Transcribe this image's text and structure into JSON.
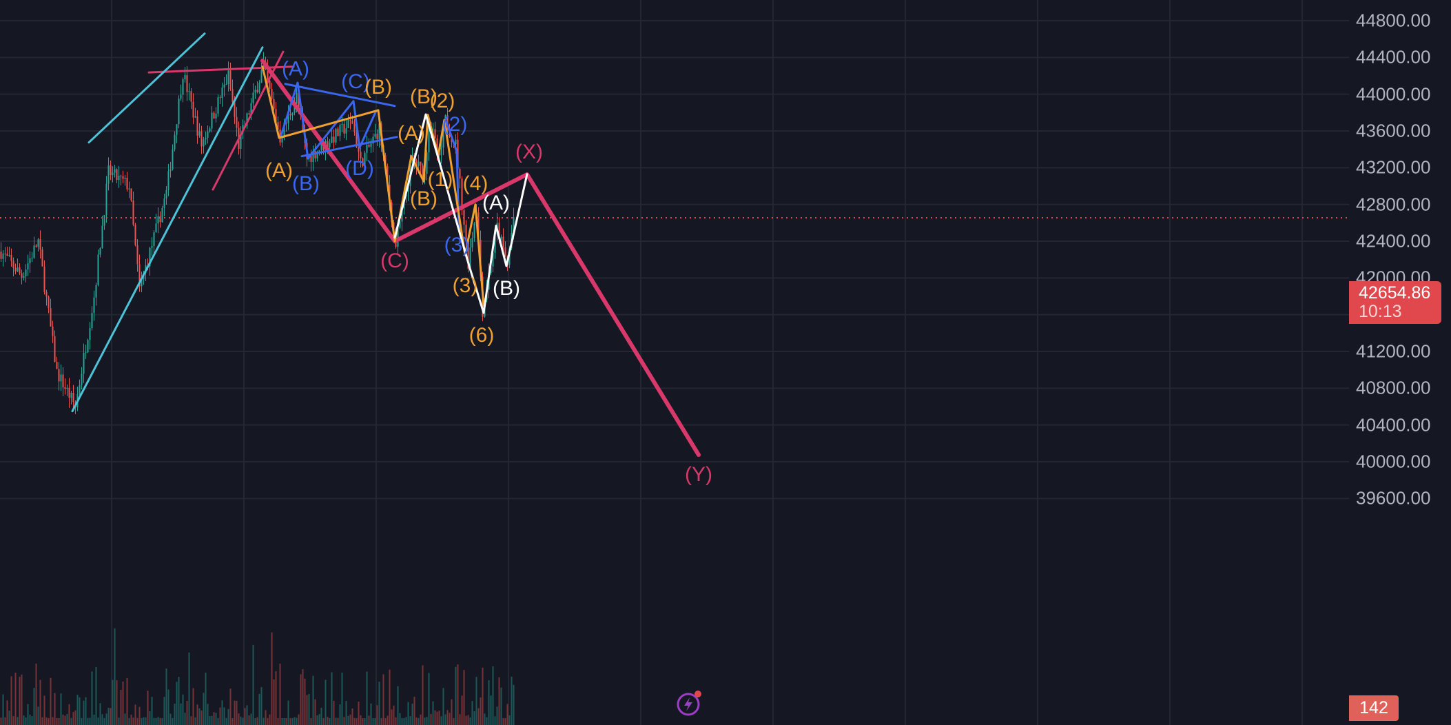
{
  "chart_data": {
    "type": "candlestick",
    "ylim": [
      39450,
      45050
    ],
    "y_ticks": [
      "44800.00",
      "44400.00",
      "44000.00",
      "43600.00",
      "43200.00",
      "42800.00",
      "42400.00",
      "42000.00",
      "41600.00",
      "41200.00",
      "40800.00",
      "40400.00",
      "40000.00",
      "39600.00"
    ],
    "grid": true,
    "current_price": "42654.86",
    "countdown": "10:13",
    "volume_label": "142",
    "colors": {
      "background": "#151823",
      "up": "#26a69a",
      "down": "#ef5350",
      "pink": "#d8386a",
      "cyan": "#4ec3d8",
      "blue": "#3a66f0",
      "orange": "#f0a030",
      "white": "#ffffff",
      "price_line": "#e0484e"
    },
    "price_path": [
      [
        0,
        42287
      ],
      [
        10,
        42025
      ],
      [
        18,
        42400
      ],
      [
        27,
        40975
      ],
      [
        36,
        40600
      ],
      [
        45,
        41800
      ],
      [
        52,
        43150
      ],
      [
        62,
        43000
      ],
      [
        67,
        41875
      ],
      [
        80,
        42925
      ],
      [
        88,
        44237
      ],
      [
        97,
        43450
      ],
      [
        110,
        44200
      ],
      [
        115,
        43450
      ],
      [
        127,
        44312
      ],
      [
        135,
        43525
      ],
      [
        143,
        43975
      ],
      [
        148,
        43300
      ],
      [
        170,
        43700
      ],
      [
        174,
        43250
      ],
      [
        183,
        43625
      ],
      [
        191,
        42362
      ],
      [
        199,
        43300
      ],
      [
        205,
        43112
      ],
      [
        207,
        43750
      ],
      [
        212,
        43262
      ],
      [
        215,
        43712
      ],
      [
        220,
        43450
      ],
      [
        226,
        42175
      ],
      [
        230,
        42775
      ],
      [
        233,
        41650
      ],
      [
        240,
        42550
      ],
      [
        245,
        42137
      ],
      [
        248,
        42662
      ]
    ],
    "lines": [
      {
        "color": "pink",
        "width": 6,
        "points": [
          [
            127,
            44365
          ],
          [
            191,
            42400
          ],
          [
            255,
            43127
          ],
          [
            338,
            40075
          ]
        ]
      },
      {
        "color": "pink",
        "width": 3,
        "points": [
          [
            72,
            44237
          ],
          [
            142,
            44300
          ]
        ]
      },
      {
        "color": "pink",
        "width": 3,
        "points": [
          [
            103,
            42962
          ],
          [
            137,
            44462
          ]
        ]
      },
      {
        "color": "cyan",
        "width": 3,
        "points": [
          [
            35,
            40550
          ],
          [
            127,
            44510
          ]
        ]
      },
      {
        "color": "cyan",
        "width": 3,
        "points": [
          [
            43,
            43475
          ],
          [
            99,
            44660
          ]
        ]
      },
      {
        "color": "blue",
        "width": 3,
        "points": [
          [
            138,
            44112
          ],
          [
            191,
            43872
          ]
        ]
      },
      {
        "color": "blue",
        "width": 3,
        "points": [
          [
            146,
            43325
          ],
          [
            192,
            43535
          ]
        ]
      },
      {
        "color": "blue",
        "width": 3,
        "points": [
          [
            136,
            43550
          ],
          [
            144,
            44125
          ],
          [
            149,
            43300
          ],
          [
            171,
            43925
          ],
          [
            174,
            43420
          ],
          [
            182,
            43820
          ]
        ]
      },
      {
        "color": "blue",
        "width": 3,
        "points": [
          [
            216,
            43700
          ],
          [
            221,
            43375
          ],
          [
            222,
            42550
          ],
          [
            226,
            42200
          ]
        ]
      },
      {
        "color": "orange",
        "width": 3,
        "points": [
          [
            127,
            44300
          ],
          [
            135,
            43525
          ],
          [
            183,
            43825
          ]
        ]
      },
      {
        "color": "orange",
        "width": 3,
        "points": [
          [
            183,
            43825
          ],
          [
            191,
            42400
          ],
          [
            199,
            43325
          ],
          [
            205,
            43050
          ],
          [
            207,
            43775
          ],
          [
            212,
            43330
          ],
          [
            215,
            43720
          ],
          [
            225,
            42250
          ],
          [
            230,
            42800
          ],
          [
            234,
            41700
          ]
        ]
      },
      {
        "color": "white",
        "width": 3,
        "points": [
          [
            191,
            42440
          ],
          [
            206,
            43780
          ],
          [
            227,
            42130
          ],
          [
            234,
            41620
          ],
          [
            240,
            42570
          ],
          [
            245,
            42130
          ],
          [
            255,
            43130
          ]
        ]
      }
    ],
    "annotations": [
      {
        "text": "(A)",
        "color": "blue",
        "t": 143,
        "price": 44265
      },
      {
        "text": "(C)",
        "color": "blue",
        "t": 172,
        "price": 44125
      },
      {
        "text": "(B)",
        "color": "orange",
        "t": 183,
        "price": 44065
      },
      {
        "text": "(B)",
        "color": "blue",
        "t": 148,
        "price": 43015
      },
      {
        "text": "(D)",
        "color": "blue",
        "t": 174,
        "price": 43180
      },
      {
        "text": "(A)",
        "color": "orange",
        "t": 135,
        "price": 43157
      },
      {
        "text": "(A)",
        "color": "orange",
        "t": 199,
        "price": 43562
      },
      {
        "text": "(B)",
        "color": "orange",
        "t": 205,
        "price": 42850
      },
      {
        "text": "(B)",
        "color": "orange",
        "t": 205,
        "price": 43960
      },
      {
        "text": "(2)",
        "color": "orange",
        "t": 214,
        "price": 43915
      },
      {
        "text": "(2)",
        "color": "blue",
        "t": 220,
        "price": 43660
      },
      {
        "text": "(1)",
        "color": "orange",
        "t": 213,
        "price": 43060
      },
      {
        "text": "(4)",
        "color": "orange",
        "t": 230,
        "price": 43015
      },
      {
        "text": "(3)",
        "color": "blue",
        "t": 221,
        "price": 42347
      },
      {
        "text": "(3)",
        "color": "orange",
        "t": 225,
        "price": 41905
      },
      {
        "text": "(6)",
        "color": "orange",
        "t": 233,
        "price": 41365
      },
      {
        "text": "(C)",
        "color": "pink",
        "t": 191,
        "price": 42175
      },
      {
        "text": "(A)",
        "color": "white",
        "t": 240,
        "price": 42805
      },
      {
        "text": "(B)",
        "color": "white",
        "t": 245,
        "price": 41875
      },
      {
        "text": "(X)",
        "color": "pink",
        "t": 256,
        "price": 43360
      },
      {
        "text": "(Y)",
        "color": "pink",
        "t": 338,
        "price": 39850
      }
    ]
  }
}
